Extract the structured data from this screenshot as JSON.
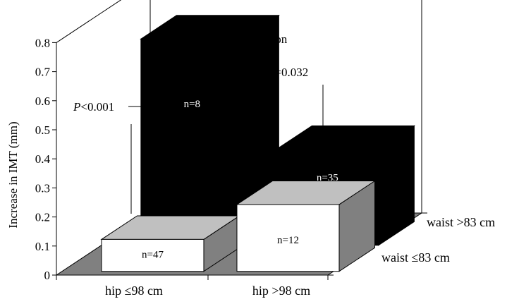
{
  "chart_data": {
    "type": "bar",
    "style": "3d",
    "ylabel": "Increase in IMT (mm)",
    "ylim": [
      0,
      0.8
    ],
    "yticks": [
      "0",
      "0.1",
      "0.2",
      "0.3",
      "0.4",
      "0.5",
      "0.6",
      "0.7",
      "0.8"
    ],
    "categories": [
      "hip ≤98 cm",
      "hip >98 cm"
    ],
    "series": [
      {
        "name": "waist ≤83 cm",
        "values": [
          0.11,
          0.23
        ],
        "labels": [
          "n=47",
          "n=12"
        ],
        "front_color": "#ffffff",
        "top_color": "#c0c0c0",
        "side_color": "#808080"
      },
      {
        "name": "waist >83 cm",
        "values": [
          0.71,
          0.33
        ],
        "labels": [
          "n=8",
          "n=35"
        ],
        "color": "#000000"
      }
    ],
    "annotations": {
      "interaction": "P=0.003 for interaction",
      "hip_low": {
        "italic": "P",
        "rest": "<0.001"
      },
      "hip_high": {
        "italic": "P",
        "rest": "=0.032"
      }
    },
    "floor_color": "#808080",
    "grid": false,
    "legend": "depth-axis labels on the right"
  }
}
